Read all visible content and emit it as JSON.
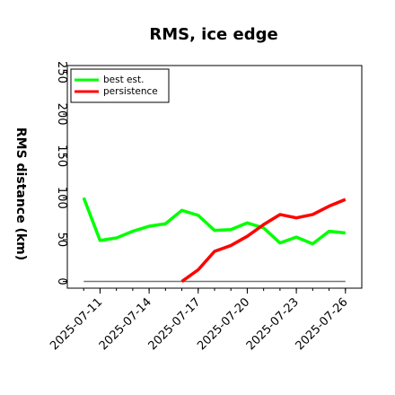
{
  "chart_data": {
    "type": "line",
    "title": "RMS, ice edge",
    "xlabel": "",
    "ylabel": "RMS distance (km)",
    "x": [
      "2025-07-10",
      "2025-07-11",
      "2025-07-12",
      "2025-07-13",
      "2025-07-14",
      "2025-07-15",
      "2025-07-16",
      "2025-07-17",
      "2025-07-18",
      "2025-07-19",
      "2025-07-20",
      "2025-07-21",
      "2025-07-22",
      "2025-07-23",
      "2025-07-24",
      "2025-07-25",
      "2025-07-26"
    ],
    "xticks": [
      "2025-07-11",
      "2025-07-14",
      "2025-07-17",
      "2025-07-20",
      "2025-07-23",
      "2025-07-26"
    ],
    "yticks": [
      0,
      50,
      100,
      150,
      200,
      250
    ],
    "ylim": [
      -8,
      258
    ],
    "xlim": [
      "2025-07-09",
      "2025-07-27"
    ],
    "grid": false,
    "legend_position": "top-left",
    "series": [
      {
        "name": "best est.",
        "color": "#00ff00",
        "x": [
          "2025-07-10",
          "2025-07-11",
          "2025-07-12",
          "2025-07-13",
          "2025-07-14",
          "2025-07-15",
          "2025-07-16",
          "2025-07-17",
          "2025-07-18",
          "2025-07-19",
          "2025-07-20",
          "2025-07-21",
          "2025-07-22",
          "2025-07-23",
          "2025-07-24",
          "2025-07-25",
          "2025-07-26"
        ],
        "values": [
          100,
          49,
          52,
          60,
          66,
          69,
          85,
          79,
          61,
          62,
          70,
          64,
          46,
          53,
          45,
          60,
          58
        ]
      },
      {
        "name": "persistence",
        "color": "#ff0000",
        "x": [
          "2025-07-16",
          "2025-07-17",
          "2025-07-18",
          "2025-07-19",
          "2025-07-20",
          "2025-07-21",
          "2025-07-22",
          "2025-07-23",
          "2025-07-24",
          "2025-07-25",
          "2025-07-26"
        ],
        "values": [
          0,
          14,
          36,
          43,
          54,
          68,
          80,
          76,
          80,
          90,
          98
        ]
      }
    ],
    "reference_line": {
      "color": "#777777",
      "x": [
        "2025-07-10",
        "2025-07-26"
      ],
      "values": [
        0,
        0
      ]
    }
  }
}
